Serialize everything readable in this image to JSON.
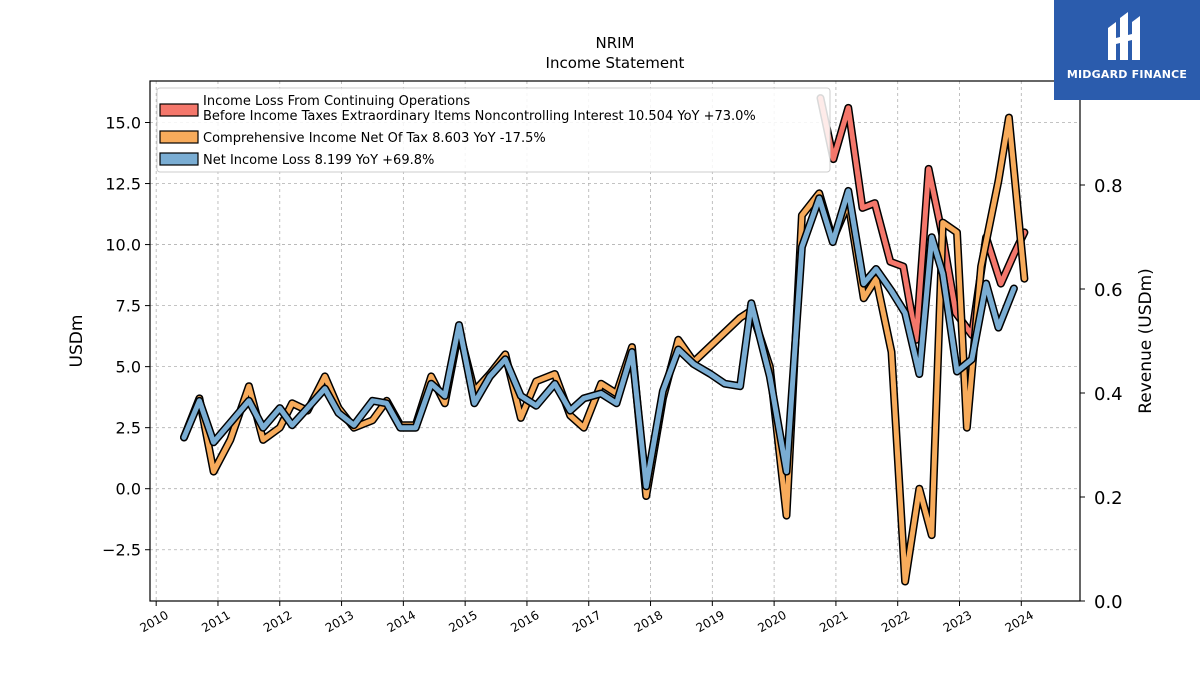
{
  "title": "NRIM",
  "subtitle": "Income Statement",
  "logo": {
    "text": "MIDGARD FINANCE",
    "icon": "midgard-logo-icon",
    "background": "#2b5cad"
  },
  "chart_data": {
    "type": "line",
    "ylabel": "USDm",
    "y2label": "Revenue (USDm)",
    "ylim": [
      -4.6,
      16.7
    ],
    "y2lim": [
      0.0,
      1.0
    ],
    "yticks": [
      -2.5,
      0.0,
      2.5,
      5.0,
      7.5,
      10.0,
      12.5,
      15.0
    ],
    "ytick_labels": [
      "−2.5",
      "0.0",
      "2.5",
      "5.0",
      "7.5",
      "10.0",
      "12.5",
      "15.0"
    ],
    "y2ticks": [
      0.0,
      0.2,
      0.4,
      0.6,
      0.8
    ],
    "y2tick_labels": [
      "0.0",
      "0.2",
      "0.4",
      "0.6",
      "0.8"
    ],
    "xlim": [
      2009.9,
      2024.95
    ],
    "xticks": [
      2010,
      2011,
      2012,
      2013,
      2014,
      2015,
      2016,
      2017,
      2018,
      2019,
      2020,
      2021,
      2022,
      2023,
      2024
    ],
    "xtick_labels": [
      "2010",
      "2011",
      "2012",
      "2013",
      "2014",
      "2015",
      "2016",
      "2017",
      "2018",
      "2019",
      "2020",
      "2021",
      "2022",
      "2023",
      "2024"
    ],
    "grid": true,
    "legend_position": "top-left",
    "series": [
      {
        "name": "Income Loss From Continuing Operations",
        "name_line2": "Before Income Taxes Extraordinary Items Noncontrolling Interest  10.504 YoY +73.0%",
        "color": "#f4776b",
        "line_width": 5,
        "points": [
          [
            2020.75,
            16.0
          ],
          [
            2020.96,
            13.5
          ],
          [
            2021.2,
            15.6
          ],
          [
            2021.43,
            11.5
          ],
          [
            2021.63,
            11.7
          ],
          [
            2021.88,
            9.3
          ],
          [
            2022.09,
            9.1
          ],
          [
            2022.3,
            6.1
          ],
          [
            2022.5,
            13.1
          ],
          [
            2022.73,
            10.3
          ],
          [
            2022.94,
            7.2
          ],
          [
            2023.2,
            6.3
          ],
          [
            2023.43,
            10.3
          ],
          [
            2023.67,
            8.4
          ],
          [
            2023.88,
            9.6
          ],
          [
            2024.05,
            10.5
          ]
        ]
      },
      {
        "name": "Comprehensive Income Net Of Tax  8.603 YoY -17.5%",
        "color": "#f7ab5b",
        "line_width": 5,
        "points": [
          [
            2010.45,
            2.1
          ],
          [
            2010.7,
            3.7
          ],
          [
            2010.93,
            0.7
          ],
          [
            2011.2,
            2.0
          ],
          [
            2011.5,
            4.2
          ],
          [
            2011.73,
            2.0
          ],
          [
            2012.0,
            2.5
          ],
          [
            2012.2,
            3.5
          ],
          [
            2012.45,
            3.2
          ],
          [
            2012.73,
            4.6
          ],
          [
            2012.95,
            3.3
          ],
          [
            2013.2,
            2.5
          ],
          [
            2013.5,
            2.8
          ],
          [
            2013.73,
            3.6
          ],
          [
            2013.95,
            2.6
          ],
          [
            2014.2,
            2.6
          ],
          [
            2014.45,
            4.6
          ],
          [
            2014.67,
            3.5
          ],
          [
            2014.9,
            6.5
          ],
          [
            2015.15,
            4.0
          ],
          [
            2015.4,
            4.7
          ],
          [
            2015.65,
            5.5
          ],
          [
            2015.9,
            2.9
          ],
          [
            2016.15,
            4.4
          ],
          [
            2016.45,
            4.7
          ],
          [
            2016.7,
            3.0
          ],
          [
            2016.92,
            2.5
          ],
          [
            2017.2,
            4.3
          ],
          [
            2017.45,
            3.9
          ],
          [
            2017.7,
            5.8
          ],
          [
            2017.93,
            -0.3
          ],
          [
            2018.2,
            3.7
          ],
          [
            2018.45,
            6.1
          ],
          [
            2018.7,
            5.2
          ],
          [
            2019.45,
            7.0
          ],
          [
            2019.63,
            7.3
          ],
          [
            2019.93,
            5.0
          ],
          [
            2020.2,
            -1.1
          ],
          [
            2020.45,
            11.2
          ],
          [
            2020.73,
            12.1
          ],
          [
            2020.95,
            10.2
          ],
          [
            2021.2,
            11.7
          ],
          [
            2021.45,
            7.8
          ],
          [
            2021.65,
            8.6
          ],
          [
            2021.9,
            5.6
          ],
          [
            2022.12,
            -3.8
          ],
          [
            2022.35,
            0.0
          ],
          [
            2022.55,
            -1.9
          ],
          [
            2022.73,
            10.9
          ],
          [
            2022.96,
            10.5
          ],
          [
            2023.12,
            2.5
          ],
          [
            2023.35,
            9.1
          ],
          [
            2023.63,
            12.6
          ],
          [
            2023.8,
            15.2
          ],
          [
            2024.05,
            8.6
          ]
        ]
      },
      {
        "name": "Net Income Loss  8.199 YoY +69.8%",
        "color": "#7aadd3",
        "line_width": 5,
        "points": [
          [
            2010.45,
            2.1
          ],
          [
            2010.7,
            3.6
          ],
          [
            2010.93,
            1.9
          ],
          [
            2011.2,
            2.7
          ],
          [
            2011.5,
            3.6
          ],
          [
            2011.73,
            2.5
          ],
          [
            2012.0,
            3.3
          ],
          [
            2012.2,
            2.6
          ],
          [
            2012.45,
            3.3
          ],
          [
            2012.73,
            4.1
          ],
          [
            2012.95,
            3.1
          ],
          [
            2013.2,
            2.6
          ],
          [
            2013.5,
            3.6
          ],
          [
            2013.73,
            3.5
          ],
          [
            2013.95,
            2.5
          ],
          [
            2014.2,
            2.5
          ],
          [
            2014.45,
            4.3
          ],
          [
            2014.67,
            3.8
          ],
          [
            2014.9,
            6.7
          ],
          [
            2015.15,
            3.5
          ],
          [
            2015.4,
            4.6
          ],
          [
            2015.65,
            5.3
          ],
          [
            2015.9,
            3.8
          ],
          [
            2016.15,
            3.4
          ],
          [
            2016.45,
            4.3
          ],
          [
            2016.7,
            3.2
          ],
          [
            2016.92,
            3.7
          ],
          [
            2017.2,
            3.9
          ],
          [
            2017.45,
            3.5
          ],
          [
            2017.7,
            5.6
          ],
          [
            2017.93,
            0.1
          ],
          [
            2018.2,
            4.0
          ],
          [
            2018.45,
            5.7
          ],
          [
            2018.7,
            5.1
          ],
          [
            2018.97,
            4.7
          ],
          [
            2019.2,
            4.3
          ],
          [
            2019.45,
            4.2
          ],
          [
            2019.63,
            7.6
          ],
          [
            2019.93,
            4.6
          ],
          [
            2020.2,
            0.7
          ],
          [
            2020.45,
            9.9
          ],
          [
            2020.73,
            11.9
          ],
          [
            2020.95,
            10.1
          ],
          [
            2021.2,
            12.2
          ],
          [
            2021.45,
            8.4
          ],
          [
            2021.65,
            9.0
          ],
          [
            2021.9,
            8.1
          ],
          [
            2022.12,
            7.2
          ],
          [
            2022.35,
            4.7
          ],
          [
            2022.55,
            10.3
          ],
          [
            2022.73,
            8.8
          ],
          [
            2022.96,
            4.8
          ],
          [
            2023.2,
            5.3
          ],
          [
            2023.43,
            8.4
          ],
          [
            2023.63,
            6.6
          ],
          [
            2023.88,
            8.2
          ]
        ]
      }
    ]
  }
}
